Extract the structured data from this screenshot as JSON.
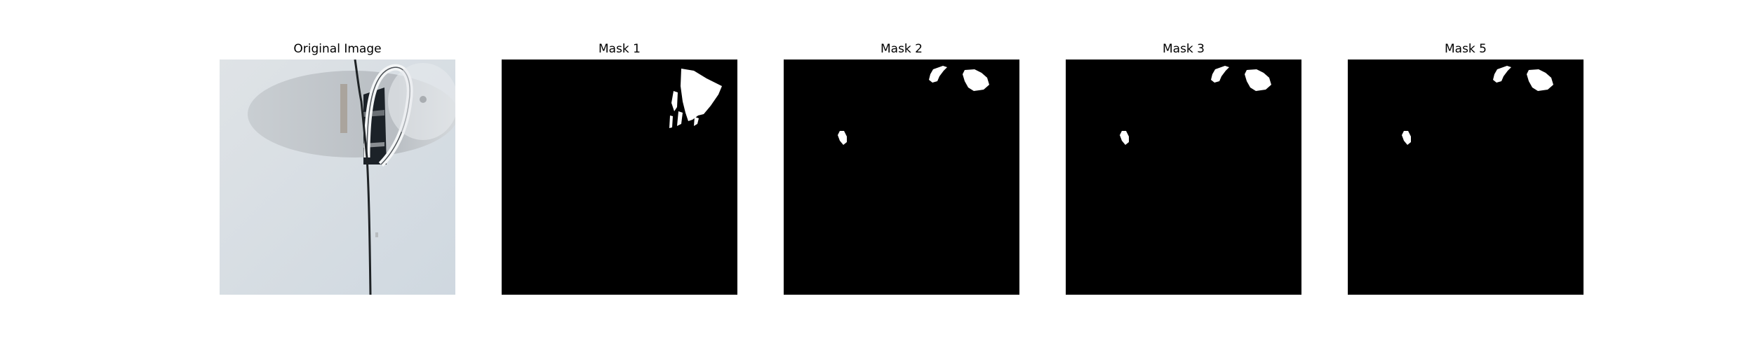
{
  "figure": {
    "panels": [
      {
        "title": "Original Image",
        "icon": "photo-icon"
      },
      {
        "title": "Mask 1",
        "icon": "mask-icon"
      },
      {
        "title": "Mask 2",
        "icon": "mask-icon"
      },
      {
        "title": "Mask 3",
        "icon": "mask-icon"
      },
      {
        "title": "Mask 5",
        "icon": "mask-icon"
      }
    ],
    "colors": {
      "mask_background": "#000000",
      "mask_foreground": "#ffffff",
      "background": "#ffffff"
    }
  }
}
